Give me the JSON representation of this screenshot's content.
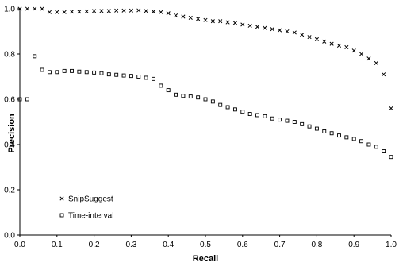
{
  "chart_data": {
    "type": "scatter",
    "title": "",
    "xlabel": "Recall",
    "ylabel": "Precision",
    "xlim": [
      0.0,
      1.0
    ],
    "ylim": [
      0.0,
      1.0
    ],
    "xticks": [
      "0.0",
      "0.1",
      "0.2",
      "0.3",
      "0.4",
      "0.5",
      "0.6",
      "0.7",
      "0.8",
      "0.9",
      "1.0"
    ],
    "yticks": [
      "0.0",
      "0.2",
      "0.4",
      "0.6",
      "0.8",
      "1.0"
    ],
    "grid": false,
    "legend": "lower-left",
    "series": [
      {
        "name": "SnipSuggest",
        "marker": "x",
        "x": [
          0.0,
          0.02,
          0.04,
          0.06,
          0.08,
          0.1,
          0.12,
          0.14,
          0.16,
          0.18,
          0.2,
          0.22,
          0.24,
          0.26,
          0.28,
          0.3,
          0.32,
          0.34,
          0.36,
          0.38,
          0.4,
          0.42,
          0.44,
          0.46,
          0.48,
          0.5,
          0.52,
          0.54,
          0.56,
          0.58,
          0.6,
          0.62,
          0.64,
          0.66,
          0.68,
          0.7,
          0.72,
          0.74,
          0.76,
          0.78,
          0.8,
          0.82,
          0.84,
          0.86,
          0.88,
          0.9,
          0.92,
          0.94,
          0.96,
          0.98,
          1.0
        ],
        "y": [
          1.0,
          1.0,
          1.0,
          1.0,
          0.985,
          0.985,
          0.985,
          0.987,
          0.987,
          0.988,
          0.99,
          0.99,
          0.99,
          0.992,
          0.992,
          0.992,
          0.993,
          0.99,
          0.987,
          0.985,
          0.98,
          0.97,
          0.965,
          0.96,
          0.955,
          0.95,
          0.945,
          0.945,
          0.94,
          0.937,
          0.93,
          0.925,
          0.92,
          0.915,
          0.91,
          0.905,
          0.9,
          0.895,
          0.885,
          0.875,
          0.865,
          0.855,
          0.845,
          0.837,
          0.83,
          0.815,
          0.8,
          0.78,
          0.76,
          0.71,
          0.56
        ]
      },
      {
        "name": "Time-interval",
        "marker": "square",
        "x": [
          0.0,
          0.02,
          0.04,
          0.06,
          0.08,
          0.1,
          0.12,
          0.14,
          0.16,
          0.18,
          0.2,
          0.22,
          0.24,
          0.26,
          0.28,
          0.3,
          0.32,
          0.34,
          0.36,
          0.38,
          0.4,
          0.42,
          0.44,
          0.46,
          0.48,
          0.5,
          0.52,
          0.54,
          0.56,
          0.58,
          0.6,
          0.62,
          0.64,
          0.66,
          0.68,
          0.7,
          0.72,
          0.74,
          0.76,
          0.78,
          0.8,
          0.82,
          0.84,
          0.86,
          0.88,
          0.9,
          0.92,
          0.94,
          0.96,
          0.98,
          1.0
        ],
        "y": [
          0.6,
          0.6,
          0.79,
          0.73,
          0.72,
          0.72,
          0.725,
          0.725,
          0.722,
          0.72,
          0.718,
          0.715,
          0.71,
          0.708,
          0.705,
          0.703,
          0.7,
          0.695,
          0.69,
          0.66,
          0.64,
          0.62,
          0.615,
          0.612,
          0.608,
          0.6,
          0.59,
          0.575,
          0.565,
          0.555,
          0.545,
          0.535,
          0.53,
          0.525,
          0.515,
          0.51,
          0.505,
          0.5,
          0.49,
          0.48,
          0.47,
          0.458,
          0.45,
          0.44,
          0.432,
          0.425,
          0.415,
          0.4,
          0.39,
          0.37,
          0.345
        ]
      }
    ]
  }
}
